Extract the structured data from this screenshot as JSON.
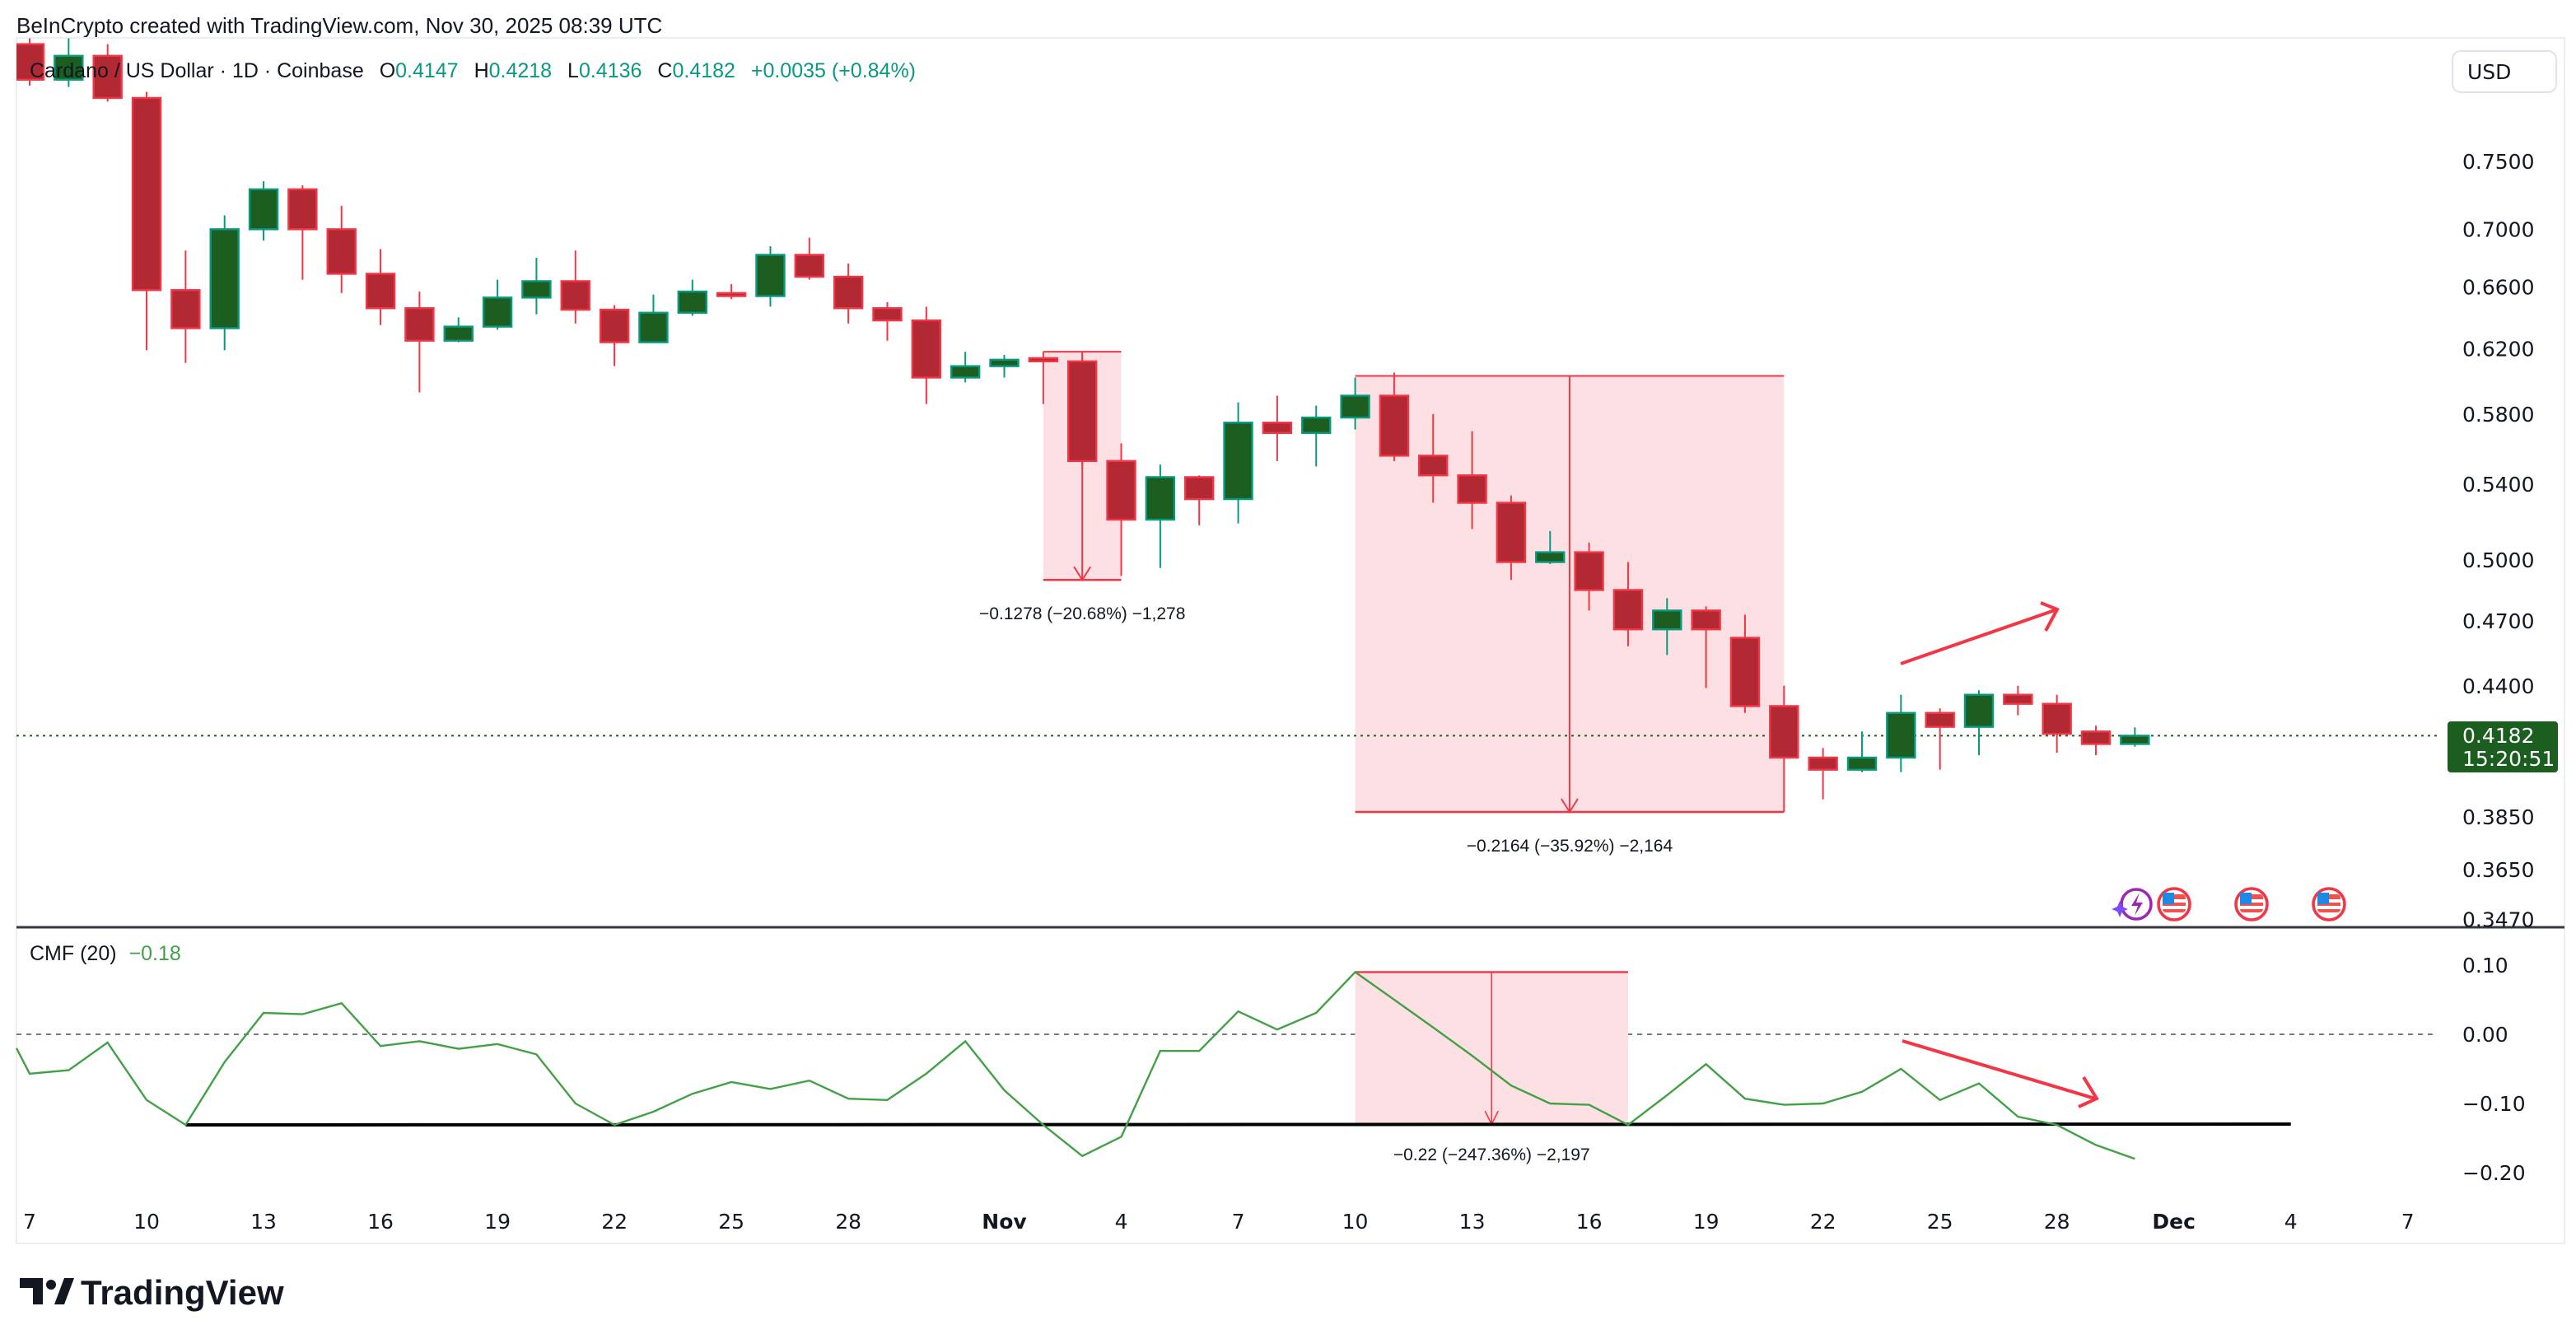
{
  "header": {
    "credit": "BeInCrypto created with TradingView.com, Nov 30, 2025 08:39 UTC",
    "symbol": "Cardano / US Dollar · 1D · Coinbase",
    "o_label": "O",
    "o_value": "0.4147",
    "h_label": "H",
    "h_value": "0.4218",
    "l_label": "L",
    "l_value": "0.4136",
    "c_label": "C",
    "c_value": "0.4182",
    "change": "+0.0035 (+0.84%)"
  },
  "currency_button": "USD",
  "last_price": {
    "value": "0.4182",
    "countdown": "15:20:51"
  },
  "indicator": {
    "label": "CMF (20)",
    "value": "−0.18"
  },
  "logo_text": "TradingView",
  "colors": {
    "up": "#1b5e20",
    "up_border": "#089981",
    "down": "#b22833",
    "down_border": "#f23645",
    "cmf": "#43a047",
    "measure_fill": "#fde0e3",
    "accent_red": "#f23645"
  },
  "chart_data": [
    {
      "type": "candlestick",
      "scale": "log",
      "y_ticks": [
        "0.7500",
        "0.7000",
        "0.6600",
        "0.6200",
        "0.5800",
        "0.5400",
        "0.5000",
        "0.4700",
        "0.4400",
        "0.3850",
        "0.3650",
        "0.3470"
      ],
      "x_ticks": [
        "7",
        "10",
        "13",
        "16",
        "19",
        "22",
        "25",
        "28",
        "Nov",
        "4",
        "7",
        "10",
        "13",
        "16",
        "19",
        "22",
        "25",
        "28",
        "Dec",
        "4",
        "7"
      ],
      "candles": [
        {
          "d": "Oct 7",
          "o": 0.845,
          "h": 0.85,
          "l": 0.81,
          "c": 0.815
        },
        {
          "d": "Oct 8",
          "o": 0.815,
          "h": 0.85,
          "l": 0.809,
          "c": 0.835
        },
        {
          "d": "Oct 9",
          "o": 0.835,
          "h": 0.845,
          "l": 0.797,
          "c": 0.8
        },
        {
          "d": "Oct 10",
          "o": 0.8,
          "h": 0.805,
          "l": 0.619,
          "c": 0.658
        },
        {
          "d": "Oct 11",
          "o": 0.658,
          "h": 0.685,
          "l": 0.611,
          "c": 0.633
        },
        {
          "d": "Oct 12",
          "o": 0.633,
          "h": 0.71,
          "l": 0.619,
          "c": 0.7
        },
        {
          "d": "Oct 13",
          "o": 0.7,
          "h": 0.735,
          "l": 0.692,
          "c": 0.729
        },
        {
          "d": "Oct 14",
          "o": 0.729,
          "h": 0.732,
          "l": 0.665,
          "c": 0.7
        },
        {
          "d": "Oct 15",
          "o": 0.7,
          "h": 0.717,
          "l": 0.656,
          "c": 0.669
        },
        {
          "d": "Oct 16",
          "o": 0.669,
          "h": 0.686,
          "l": 0.635,
          "c": 0.646
        },
        {
          "d": "Oct 17",
          "o": 0.646,
          "h": 0.657,
          "l": 0.593,
          "c": 0.625
        },
        {
          "d": "Oct 18",
          "o": 0.625,
          "h": 0.64,
          "l": 0.624,
          "c": 0.634
        },
        {
          "d": "Oct 19",
          "o": 0.634,
          "h": 0.665,
          "l": 0.632,
          "c": 0.653
        },
        {
          "d": "Oct 20",
          "o": 0.653,
          "h": 0.68,
          "l": 0.642,
          "c": 0.664
        },
        {
          "d": "Oct 21",
          "o": 0.664,
          "h": 0.685,
          "l": 0.636,
          "c": 0.645
        },
        {
          "d": "Oct 22",
          "o": 0.645,
          "h": 0.648,
          "l": 0.609,
          "c": 0.624
        },
        {
          "d": "Oct 23",
          "o": 0.624,
          "h": 0.655,
          "l": 0.624,
          "c": 0.643
        },
        {
          "d": "Oct 24",
          "o": 0.643,
          "h": 0.665,
          "l": 0.641,
          "c": 0.657
        },
        {
          "d": "Oct 25",
          "o": 0.656,
          "h": 0.662,
          "l": 0.652,
          "c": 0.654
        },
        {
          "d": "Oct 26",
          "o": 0.654,
          "h": 0.688,
          "l": 0.647,
          "c": 0.682
        },
        {
          "d": "Oct 27",
          "o": 0.682,
          "h": 0.694,
          "l": 0.665,
          "c": 0.667
        },
        {
          "d": "Oct 28",
          "o": 0.667,
          "h": 0.676,
          "l": 0.636,
          "c": 0.646
        },
        {
          "d": "Oct 29",
          "o": 0.646,
          "h": 0.65,
          "l": 0.625,
          "c": 0.638
        },
        {
          "d": "Oct 30",
          "o": 0.638,
          "h": 0.647,
          "l": 0.586,
          "c": 0.602
        },
        {
          "d": "Oct 31",
          "o": 0.602,
          "h": 0.618,
          "l": 0.599,
          "c": 0.609
        },
        {
          "d": "Nov 1",
          "o": 0.609,
          "h": 0.616,
          "l": 0.602,
          "c": 0.613
        },
        {
          "d": "Nov 2",
          "o": 0.614,
          "h": 0.618,
          "l": 0.586,
          "c": 0.612
        },
        {
          "d": "Nov 3",
          "o": 0.612,
          "h": 0.616,
          "l": 0.55,
          "c": 0.553
        },
        {
          "d": "Nov 4",
          "o": 0.553,
          "h": 0.563,
          "l": 0.492,
          "c": 0.521
        },
        {
          "d": "Nov 5",
          "o": 0.521,
          "h": 0.551,
          "l": 0.496,
          "c": 0.544
        },
        {
          "d": "Nov 6",
          "o": 0.544,
          "h": 0.545,
          "l": 0.518,
          "c": 0.532
        },
        {
          "d": "Nov 7",
          "o": 0.532,
          "h": 0.587,
          "l": 0.519,
          "c": 0.575
        },
        {
          "d": "Nov 8",
          "o": 0.575,
          "h": 0.591,
          "l": 0.553,
          "c": 0.569
        },
        {
          "d": "Nov 9",
          "o": 0.569,
          "h": 0.585,
          "l": 0.55,
          "c": 0.578
        },
        {
          "d": "Nov 10",
          "o": 0.578,
          "h": 0.602,
          "l": 0.571,
          "c": 0.591
        },
        {
          "d": "Nov 11",
          "o": 0.591,
          "h": 0.605,
          "l": 0.553,
          "c": 0.556
        },
        {
          "d": "Nov 12",
          "o": 0.556,
          "h": 0.58,
          "l": 0.53,
          "c": 0.545
        },
        {
          "d": "Nov 13",
          "o": 0.545,
          "h": 0.57,
          "l": 0.516,
          "c": 0.53
        },
        {
          "d": "Nov 14",
          "o": 0.53,
          "h": 0.534,
          "l": 0.49,
          "c": 0.499
        },
        {
          "d": "Nov 15",
          "o": 0.499,
          "h": 0.515,
          "l": 0.498,
          "c": 0.504
        },
        {
          "d": "Nov 16",
          "o": 0.504,
          "h": 0.509,
          "l": 0.475,
          "c": 0.485
        },
        {
          "d": "Nov 17",
          "o": 0.485,
          "h": 0.499,
          "l": 0.458,
          "c": 0.466
        },
        {
          "d": "Nov 18",
          "o": 0.466,
          "h": 0.481,
          "l": 0.454,
          "c": 0.475
        },
        {
          "d": "Nov 19",
          "o": 0.475,
          "h": 0.477,
          "l": 0.439,
          "c": 0.466
        },
        {
          "d": "Nov 20",
          "o": 0.462,
          "h": 0.473,
          "l": 0.428,
          "c": 0.431
        },
        {
          "d": "Nov 21",
          "o": 0.431,
          "h": 0.44,
          "l": 0.387,
          "c": 0.409
        },
        {
          "d": "Nov 22",
          "o": 0.409,
          "h": 0.413,
          "l": 0.392,
          "c": 0.404
        },
        {
          "d": "Nov 23",
          "o": 0.404,
          "h": 0.42,
          "l": 0.403,
          "c": 0.409
        },
        {
          "d": "Nov 24",
          "o": 0.409,
          "h": 0.436,
          "l": 0.403,
          "c": 0.428
        },
        {
          "d": "Nov 25",
          "o": 0.428,
          "h": 0.43,
          "l": 0.404,
          "c": 0.422
        },
        {
          "d": "Nov 26",
          "o": 0.422,
          "h": 0.438,
          "l": 0.41,
          "c": 0.436
        },
        {
          "d": "Nov 27",
          "o": 0.436,
          "h": 0.44,
          "l": 0.427,
          "c": 0.432
        },
        {
          "d": "Nov 28",
          "o": 0.432,
          "h": 0.436,
          "l": 0.411,
          "c": 0.419
        },
        {
          "d": "Nov 29",
          "o": 0.42,
          "h": 0.4225,
          "l": 0.41,
          "c": 0.4147
        },
        {
          "d": "Nov 30",
          "o": 0.4147,
          "h": 0.4218,
          "l": 0.4136,
          "c": 0.4182
        }
      ],
      "annotations": [
        {
          "label": "−0.1278 (−20.68%) −1,278",
          "from": "Nov 2",
          "to": "Nov 4",
          "top": 0.618,
          "bottom": 0.49
        },
        {
          "label": "−0.2164 (−35.92%) −2,164",
          "from": "Nov 10",
          "to": "Nov 21",
          "top": 0.603,
          "bottom": 0.387
        }
      ]
    },
    {
      "type": "line",
      "name": "CMF (20)",
      "y_ticks": [
        "0.10",
        "0.00",
        "−0.10",
        "−0.20"
      ],
      "ylim": [
        -0.24,
        0.12
      ],
      "zero_line": true,
      "values": [
        -0.057,
        -0.052,
        -0.012,
        -0.095,
        -0.131,
        -0.04,
        0.031,
        0.029,
        0.045,
        -0.017,
        -0.01,
        -0.021,
        -0.014,
        -0.029,
        -0.1,
        -0.131,
        -0.112,
        -0.086,
        -0.069,
        -0.079,
        -0.067,
        -0.093,
        -0.095,
        -0.057,
        -0.01,
        -0.081,
        -0.131,
        -0.176,
        -0.148,
        -0.024,
        -0.024,
        0.033,
        0.007,
        0.031,
        0.09,
        0.05,
        0.01,
        -0.031,
        -0.074,
        -0.1,
        -0.102,
        -0.131,
        -0.088,
        -0.043,
        -0.093,
        -0.102,
        -0.1,
        -0.083,
        -0.05,
        -0.095,
        -0.071,
        -0.119,
        -0.131,
        -0.16,
        -0.18
      ],
      "annotations": [
        {
          "label": "−0.22 (−247.36%) −2,197",
          "from": "Nov 10",
          "to": "Nov 17",
          "top": 0.09,
          "bottom": -0.13
        },
        {
          "type": "trendline",
          "value": -0.131
        }
      ]
    }
  ]
}
